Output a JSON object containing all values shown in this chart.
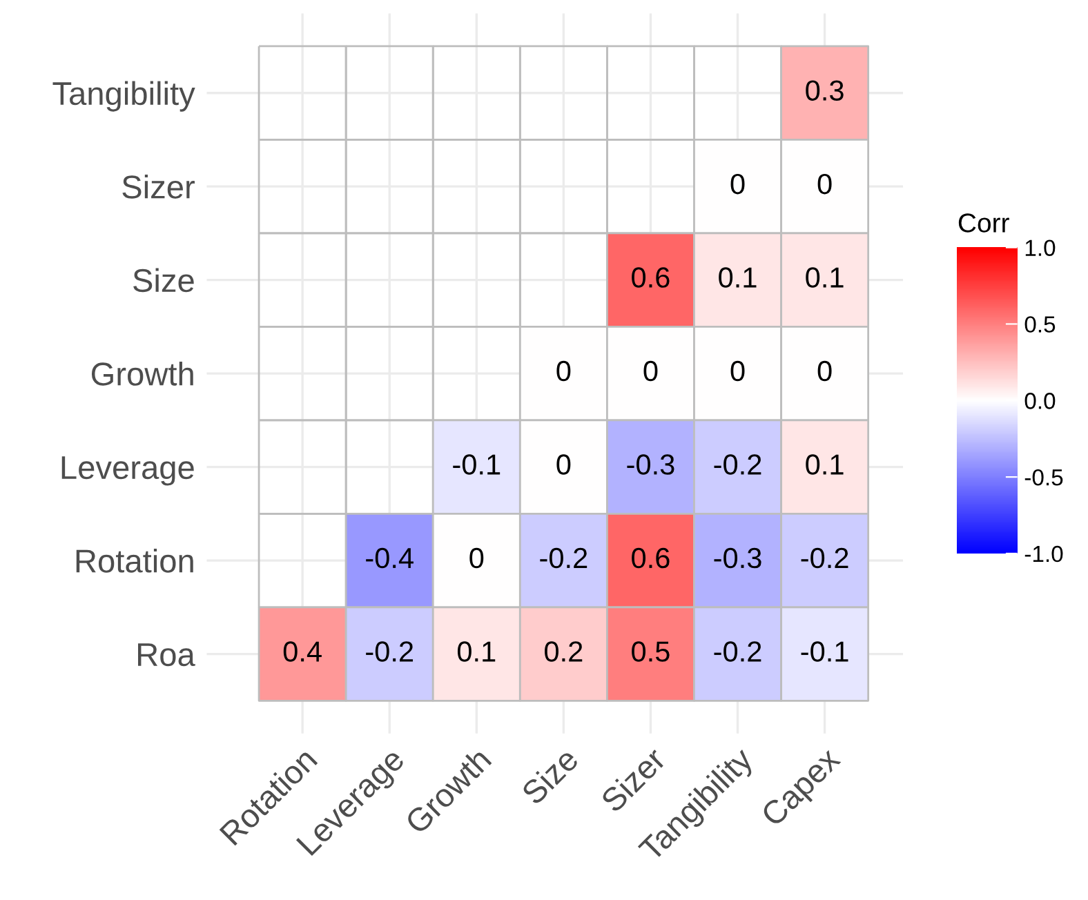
{
  "chart_data": {
    "type": "heatmap",
    "clabel": "Corr",
    "categories": [
      "Rotation",
      "Leverage",
      "Growth",
      "Size",
      "Sizer",
      "Tangibility",
      "Capex"
    ],
    "y_categories": [
      "Tangibility",
      "Sizer",
      "Size",
      "Growth",
      "Leverage",
      "Rotation",
      "Roa"
    ],
    "cells": [
      [
        null,
        null,
        null,
        null,
        null,
        null,
        0.3
      ],
      [
        null,
        null,
        null,
        null,
        null,
        0,
        0
      ],
      [
        null,
        null,
        null,
        null,
        0.6,
        0.1,
        0.1
      ],
      [
        null,
        null,
        null,
        0,
        0,
        0,
        0
      ],
      [
        null,
        null,
        -0.1,
        0,
        -0.3,
        -0.2,
        0.1
      ],
      [
        null,
        -0.4,
        0,
        -0.2,
        0.6,
        -0.3,
        -0.2
      ],
      [
        0.4,
        -0.2,
        0.1,
        0.2,
        0.5,
        -0.2,
        -0.1
      ]
    ],
    "clim": [
      -1.0,
      1.0
    ],
    "cticks": [
      {
        "value": -1.0,
        "label": "-1.0"
      },
      {
        "value": -0.5,
        "label": "-0.5"
      },
      {
        "value": 0.0,
        "label": "0.0"
      },
      {
        "value": 0.5,
        "label": "0.5"
      },
      {
        "value": 1.0,
        "label": "1.0"
      }
    ],
    "data_labels": true,
    "grid": true
  }
}
